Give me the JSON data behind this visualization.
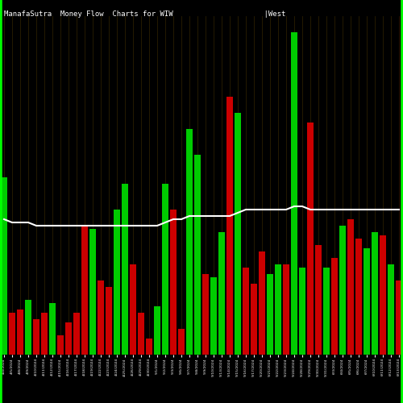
{
  "title": "ManafaSutra  Money Flow  Charts for WIW                     |West                                                          ern  Asset",
  "background_color": "#000000",
  "bar_colors_pattern": [
    "green",
    "red",
    "red",
    "green",
    "red",
    "red",
    "green",
    "red",
    "red",
    "red",
    "red",
    "green",
    "red",
    "red",
    "green",
    "green",
    "red",
    "red",
    "red",
    "green",
    "green",
    "red",
    "red",
    "green",
    "green",
    "red",
    "green",
    "green",
    "red",
    "green",
    "red",
    "red",
    "red",
    "green",
    "green",
    "red",
    "green",
    "green",
    "red",
    "red",
    "green",
    "red",
    "green",
    "red",
    "red",
    "green",
    "green",
    "red",
    "green",
    "red"
  ],
  "bar_heights": [
    0.55,
    0.13,
    0.14,
    0.17,
    0.11,
    0.13,
    0.16,
    0.06,
    0.1,
    0.13,
    0.4,
    0.39,
    0.23,
    0.21,
    0.45,
    0.53,
    0.28,
    0.13,
    0.05,
    0.15,
    0.53,
    0.45,
    0.08,
    0.7,
    0.62,
    0.25,
    0.24,
    0.38,
    0.8,
    0.75,
    0.27,
    0.22,
    0.32,
    0.25,
    0.28,
    0.28,
    1.0,
    0.27,
    0.72,
    0.34,
    0.27,
    0.3,
    0.4,
    0.42,
    0.36,
    0.33,
    0.38,
    0.37,
    0.28,
    0.23
  ],
  "line_values": [
    0.42,
    0.41,
    0.41,
    0.41,
    0.4,
    0.4,
    0.4,
    0.4,
    0.4,
    0.4,
    0.4,
    0.4,
    0.4,
    0.4,
    0.4,
    0.4,
    0.4,
    0.4,
    0.4,
    0.4,
    0.41,
    0.42,
    0.42,
    0.43,
    0.43,
    0.43,
    0.43,
    0.43,
    0.43,
    0.44,
    0.45,
    0.45,
    0.45,
    0.45,
    0.45,
    0.45,
    0.46,
    0.46,
    0.45,
    0.45,
    0.45,
    0.45,
    0.45,
    0.45,
    0.45,
    0.45,
    0.45,
    0.45,
    0.45,
    0.45
  ],
  "x_labels": [
    "4/4/2024",
    "4/5/2024",
    "4/8/2024",
    "4/9/2024",
    "4/10/2024",
    "4/11/2024",
    "4/12/2024",
    "4/15/2024",
    "4/16/2024",
    "4/17/2024",
    "4/18/2024",
    "4/19/2024",
    "4/22/2024",
    "4/23/2024",
    "4/24/2024",
    "4/25/2024",
    "4/26/2024",
    "4/29/2024",
    "4/30/2024",
    "5/1/2024",
    "5/2/2024",
    "5/3/2024",
    "5/6/2024",
    "5/7/2024",
    "5/8/2024",
    "5/9/2024",
    "5/10/2024",
    "5/13/2024",
    "5/14/2024",
    "5/15/2024",
    "5/16/2024",
    "5/17/2024",
    "5/20/2024",
    "5/21/2024",
    "5/22/2024",
    "5/23/2024",
    "5/24/2024",
    "5/28/2024",
    "5/29/2024",
    "5/30/2024",
    "5/31/2024",
    "6/3/2024",
    "6/4/2024",
    "6/5/2024",
    "6/6/2024",
    "6/7/2024",
    "6/10/2024",
    "6/11/2024",
    "6/12/2024",
    "6/13/2024"
  ],
  "white_line_color": "#ffffff",
  "title_color": "#ffffff",
  "title_fontsize": 6.5,
  "ylim": [
    0,
    1.05
  ],
  "vertical_line_color": "#2a1f00",
  "border_green": "#00ff00",
  "bar_green": "#00cc00",
  "bar_red": "#cc0000"
}
